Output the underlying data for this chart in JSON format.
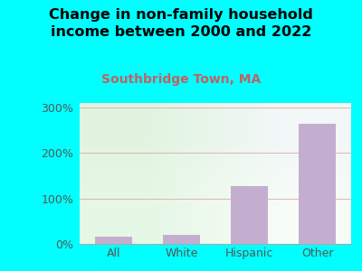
{
  "title": "Change in non-family household\nincome between 2000 and 2022",
  "subtitle": "Southbridge Town, MA",
  "categories": [
    "All",
    "White",
    "Hispanic",
    "Other"
  ],
  "values": [
    15,
    20,
    127,
    265
  ],
  "bar_color": "#c4aed0",
  "background_color": "#00ffff",
  "title_fontsize": 11.5,
  "subtitle_fontsize": 10,
  "ylabel_ticks": [
    0,
    100,
    200,
    300
  ],
  "ylim": [
    0,
    310
  ],
  "grid_color": "#e8b0b0",
  "subtitle_color": "#c46060",
  "tick_label_color": "#555555",
  "axis_label_fontsize": 9
}
